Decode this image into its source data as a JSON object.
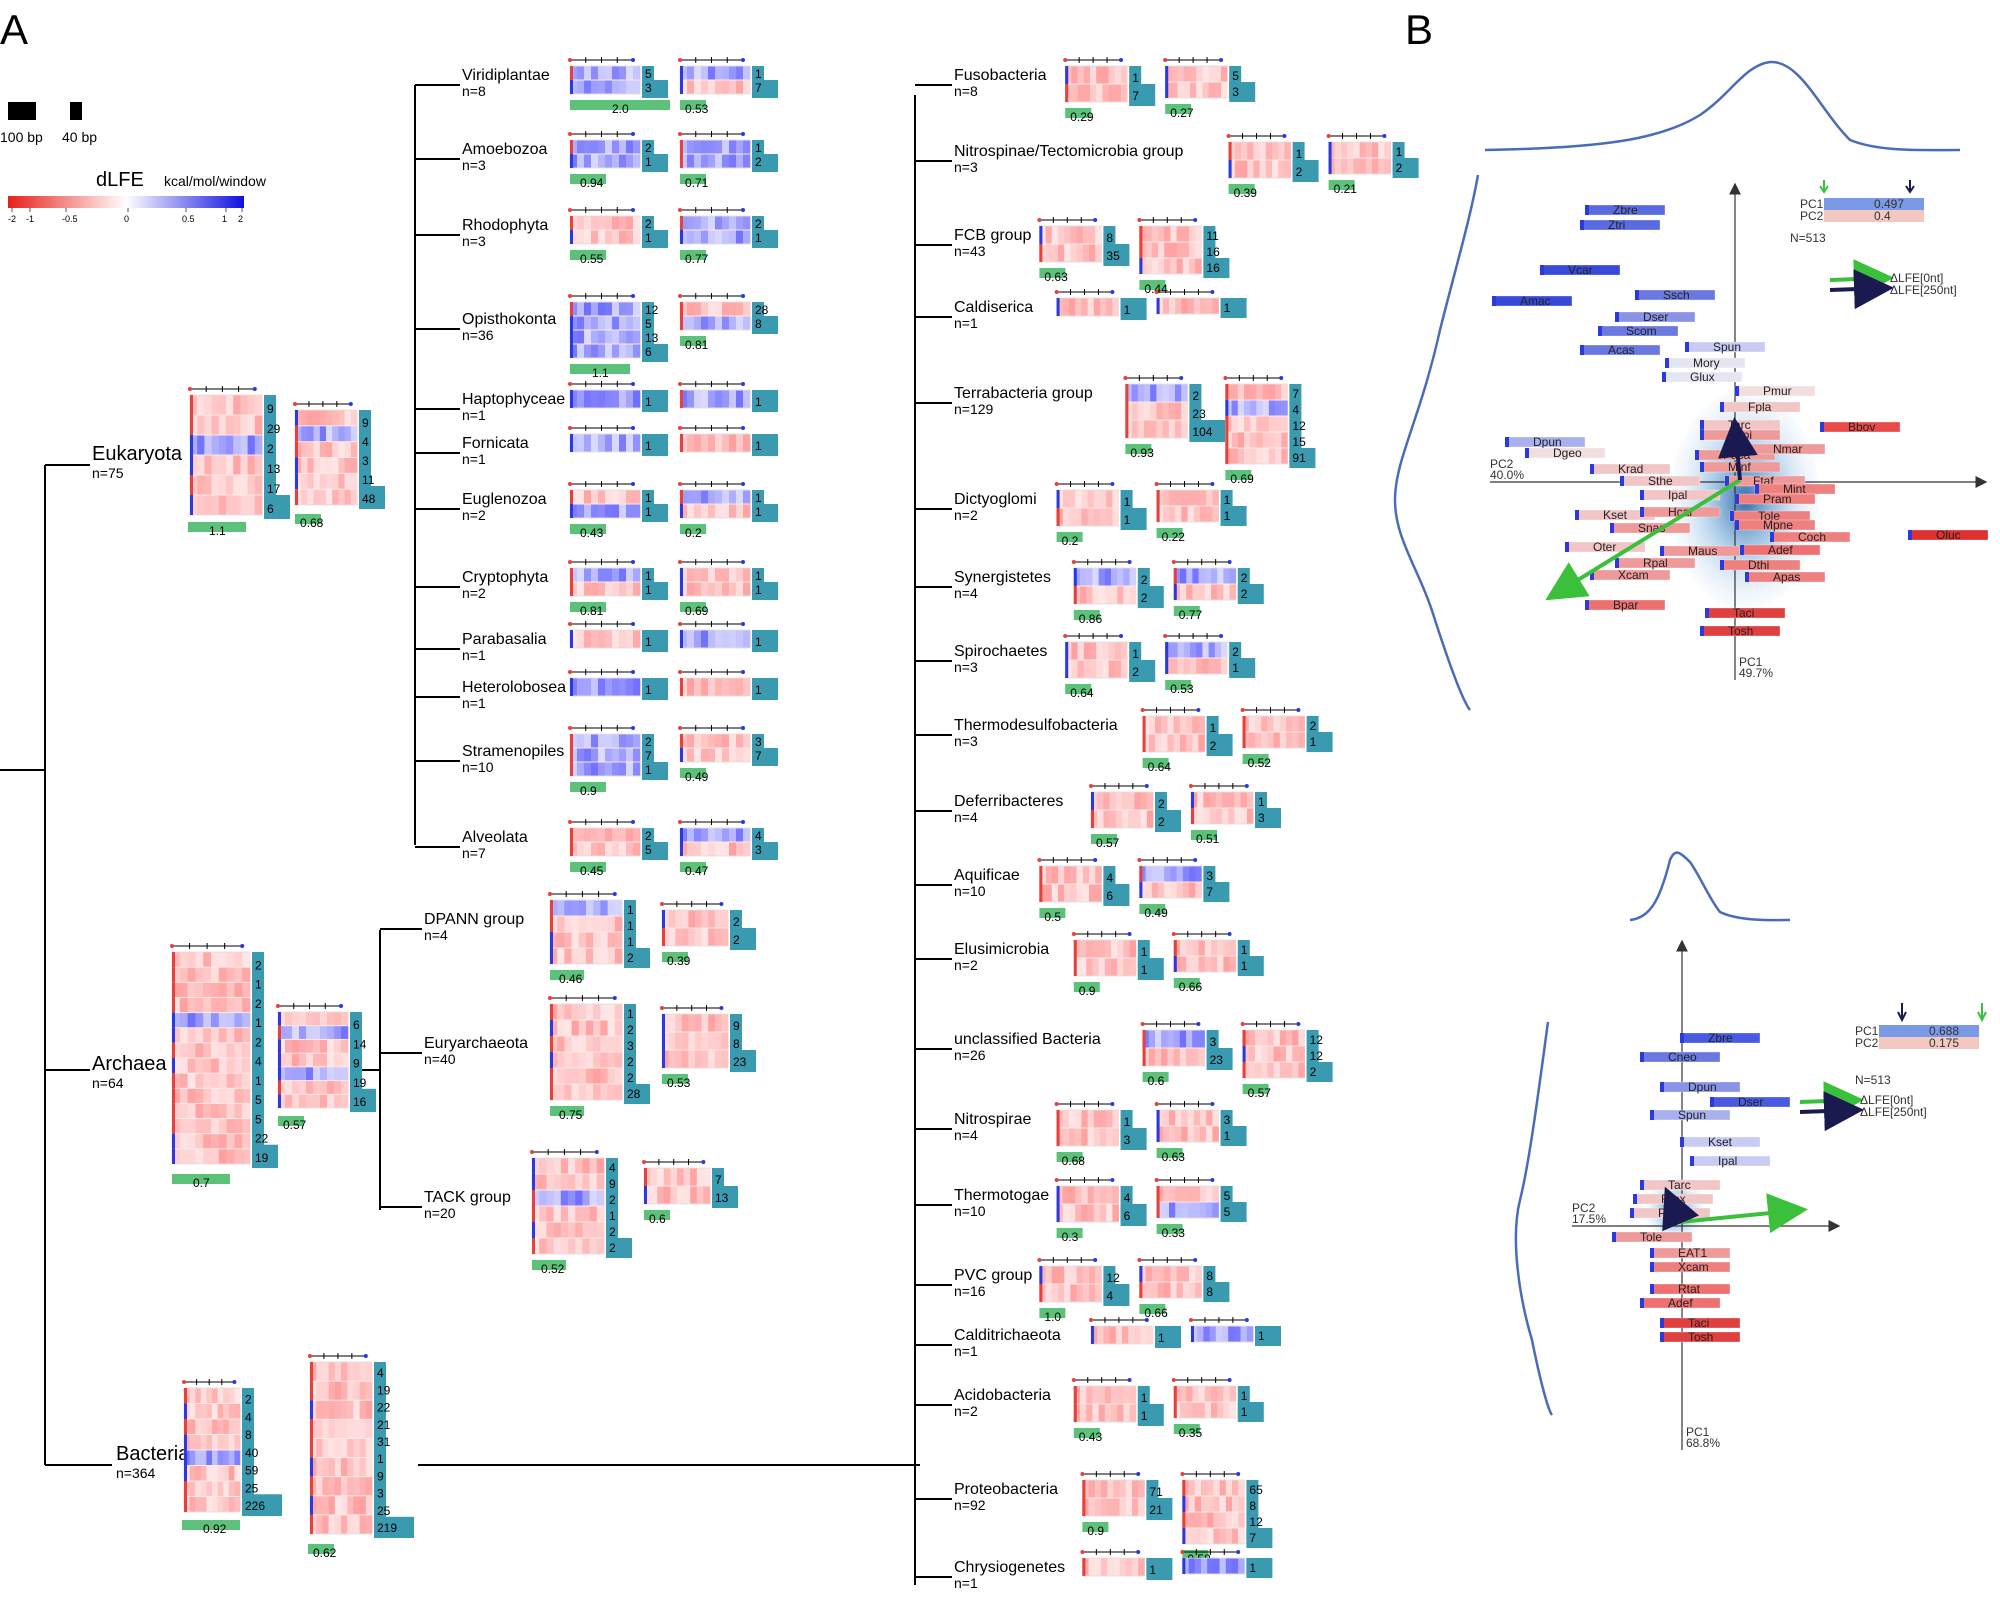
{
  "panels": {
    "a": "A",
    "b": "B"
  },
  "scale": {
    "bar1": "100 bp",
    "bar2": "40 bp"
  },
  "dlfe": {
    "title": "dLFE",
    "unit": "kcal/mol/window",
    "ticks": [
      "-2",
      "-1",
      "-0.5",
      "0",
      "0.5",
      "1",
      "2"
    ]
  },
  "root_groups": [
    {
      "name": "Eukaryota",
      "n": "n=75",
      "hm1": 6,
      "hm2": 6,
      "lc": [
        "9",
        "29",
        "2",
        "13",
        "17",
        "6"
      ],
      "rc": [
        "9",
        "4",
        "3",
        "11",
        "48"
      ],
      "g1": "1.1",
      "g2": "0.68",
      "blue": 0.25
    },
    {
      "name": "Archaea",
      "n": "n=64",
      "hm1": 14,
      "hm2": 7,
      "lc": [
        "2",
        "1",
        "2",
        "1",
        "2",
        "4",
        "1",
        "5",
        "5",
        "22",
        "19"
      ],
      "rc": [
        "6",
        "14",
        "9",
        "19",
        "16"
      ],
      "g1": "0.7",
      "g2": "0.57",
      "blue": 0.1
    },
    {
      "name": "Bacteria",
      "n": "n=364",
      "hm1": 8,
      "hm2": 9,
      "lc": [
        "2",
        "4",
        "8",
        "40",
        "59",
        "25",
        "226"
      ],
      "rc": [
        "4",
        "19",
        "22",
        "21",
        "31",
        "1",
        "9",
        "3",
        "25",
        "219"
      ],
      "g1": "0.92",
      "g2": "0.62",
      "blue": 0.05
    }
  ],
  "eukaryota": [
    {
      "name": "Viridiplantae",
      "n": "n=8",
      "lc": [
        "5",
        "3"
      ],
      "rc": [
        "1",
        "7"
      ],
      "g1": "2.0",
      "g2": "0.53",
      "blue": 0.9
    },
    {
      "name": "Amoebozoa",
      "n": "n=3",
      "lc": [
        "2",
        "1"
      ],
      "rc": [
        "1",
        "2"
      ],
      "g1": "0.94",
      "g2": "0.71",
      "blue": 0.8
    },
    {
      "name": "Rhodophyta",
      "n": "n=3",
      "lc": [
        "2",
        "1"
      ],
      "rc": [
        "2",
        "1"
      ],
      "g1": "0.55",
      "g2": "0.77",
      "blue": 0.5
    },
    {
      "name": "Opisthokonta",
      "n": "n=36",
      "lc": [
        "12",
        "5",
        "13",
        "6"
      ],
      "rc": [
        "28",
        "8"
      ],
      "g1": "1.1",
      "g2": "0.81",
      "blue": 0.8
    },
    {
      "name": "Haptophyceae",
      "n": "n=1",
      "lc": [
        "1"
      ],
      "rc": [
        "1"
      ],
      "g1": "",
      "g2": "",
      "blue": 0.9
    },
    {
      "name": "Fornicata",
      "n": "n=1",
      "lc": [
        "1"
      ],
      "rc": [
        "1"
      ],
      "g1": "",
      "g2": "",
      "blue": 0.1
    },
    {
      "name": "Euglenozoa",
      "n": "n=2",
      "lc": [
        "1",
        "1"
      ],
      "rc": [
        "1",
        "1"
      ],
      "g1": "0.43",
      "g2": "0.2",
      "blue": 0.6
    },
    {
      "name": "Cryptophyta",
      "n": "n=2",
      "lc": [
        "1",
        "1"
      ],
      "rc": [
        "1",
        "1"
      ],
      "g1": "0.81",
      "g2": "0.69",
      "blue": 0.6
    },
    {
      "name": "Parabasalia",
      "n": "n=1",
      "lc": [
        "1"
      ],
      "rc": [
        "1"
      ],
      "g1": "",
      "g2": "",
      "blue": 0.4
    },
    {
      "name": "Heterolobosea",
      "n": "n=1",
      "lc": [
        "1"
      ],
      "rc": [
        "1"
      ],
      "g1": "",
      "g2": "",
      "blue": 0.5
    },
    {
      "name": "Stramenopiles",
      "n": "n=10",
      "lc": [
        "2",
        "7",
        "1"
      ],
      "rc": [
        "3",
        "7"
      ],
      "g1": "0.9",
      "g2": "0.49",
      "blue": 0.6
    },
    {
      "name": "Alveolata",
      "n": "n=7",
      "lc": [
        "2",
        "5"
      ],
      "rc": [
        "4",
        "3"
      ],
      "g1": "0.45",
      "g2": "0.47",
      "blue": 0.1
    }
  ],
  "archaea": [
    {
      "name": "DPANN group",
      "n": "n=4",
      "lc": [
        "1",
        "1",
        "1",
        "2"
      ],
      "rc": [
        "2",
        "2"
      ],
      "g1": "0.46",
      "g2": "0.39",
      "blue": 0.3
    },
    {
      "name": "Euryarchaeota",
      "n": "n=40",
      "lc": [
        "1",
        "2",
        "3",
        "2",
        "2",
        "28"
      ],
      "rc": [
        "9",
        "8",
        "23"
      ],
      "g1": "0.75",
      "g2": "0.53",
      "blue": 0.1
    },
    {
      "name": "TACK group",
      "n": "n=20",
      "lc": [
        "4",
        "9",
        "2",
        "1",
        "2",
        "2"
      ],
      "rc": [
        "7",
        "13"
      ],
      "g1": "0.52",
      "g2": "0.6",
      "blue": 0.3
    }
  ],
  "bacteria": [
    {
      "name": "Fusobacteria",
      "n": "n=8",
      "lc": [
        "1",
        "7"
      ],
      "rc": [
        "5",
        "3"
      ],
      "g1": "0.29",
      "g2": "0.27"
    },
    {
      "name": "Nitrospinae/Tectomicrobia group",
      "n": "n=3",
      "lc": [
        "1",
        "2"
      ],
      "rc": [
        "1",
        "2"
      ],
      "g1": "0.39",
      "g2": "0.21"
    },
    {
      "name": "FCB group",
      "n": "n=43",
      "lc": [
        "8",
        "35"
      ],
      "rc": [
        "11",
        "16",
        "16"
      ],
      "g1": "0.63",
      "g2": "0.44"
    },
    {
      "name": "Caldiserica",
      "n": "n=1",
      "lc": [
        "1"
      ],
      "rc": [
        "1"
      ],
      "g1": "",
      "g2": ""
    },
    {
      "name": "Terrabacteria group",
      "n": "n=129",
      "lc": [
        "2",
        "23",
        "104"
      ],
      "rc": [
        "7",
        "4",
        "12",
        "15",
        "91"
      ],
      "g1": "0.93",
      "g2": "0.69"
    },
    {
      "name": "Dictyoglomi",
      "n": "n=2",
      "lc": [
        "1",
        "1"
      ],
      "rc": [
        "1",
        "1"
      ],
      "g1": "0.2",
      "g2": "0.22"
    },
    {
      "name": "Synergistetes",
      "n": "n=4",
      "lc": [
        "2",
        "2"
      ],
      "rc": [
        "2",
        "2"
      ],
      "g1": "0.86",
      "g2": "0.77"
    },
    {
      "name": "Spirochaetes",
      "n": "n=3",
      "lc": [
        "1",
        "2"
      ],
      "rc": [
        "2",
        "1"
      ],
      "g1": "0.64",
      "g2": "0.53"
    },
    {
      "name": "Thermodesulfobacteria",
      "n": "n=3",
      "lc": [
        "1",
        "2"
      ],
      "rc": [
        "2",
        "1"
      ],
      "g1": "0.64",
      "g2": "0.52"
    },
    {
      "name": "Deferribacteres",
      "n": "n=4",
      "lc": [
        "2",
        "2"
      ],
      "rc": [
        "1",
        "3"
      ],
      "g1": "0.57",
      "g2": "0.51"
    },
    {
      "name": "Aquificae",
      "n": "n=10",
      "lc": [
        "4",
        "6"
      ],
      "rc": [
        "3",
        "7"
      ],
      "g1": "0.5",
      "g2": "0.49"
    },
    {
      "name": "Elusimicrobia",
      "n": "n=2",
      "lc": [
        "1",
        "1"
      ],
      "rc": [
        "1",
        "1"
      ],
      "g1": "0.9",
      "g2": "0.66"
    },
    {
      "name": "unclassified Bacteria",
      "n": "n=26",
      "lc": [
        "3",
        "23"
      ],
      "rc": [
        "12",
        "12",
        "2"
      ],
      "g1": "0.6",
      "g2": "0.57"
    },
    {
      "name": "Nitrospirae",
      "n": "n=4",
      "lc": [
        "1",
        "3"
      ],
      "rc": [
        "3",
        "1"
      ],
      "g1": "0.68",
      "g2": "0.63"
    },
    {
      "name": "Thermotogae",
      "n": "n=10",
      "lc": [
        "4",
        "6"
      ],
      "rc": [
        "5",
        "5"
      ],
      "g1": "0.3",
      "g2": "0.33"
    },
    {
      "name": "PVC group",
      "n": "n=16",
      "lc": [
        "12",
        "4"
      ],
      "rc": [
        "8",
        "8"
      ],
      "g1": "1.0",
      "g2": "0.66"
    },
    {
      "name": "Calditrichaeota",
      "n": "n=1",
      "lc": [
        "1"
      ],
      "rc": [
        "1"
      ],
      "g1": "",
      "g2": ""
    },
    {
      "name": "Acidobacteria",
      "n": "n=2",
      "lc": [
        "1",
        "1"
      ],
      "rc": [
        "1",
        "1"
      ],
      "g1": "0.43",
      "g2": "0.35"
    },
    {
      "name": "Proteobacteria",
      "n": "n=92",
      "lc": [
        "71",
        "21"
      ],
      "rc": [
        "65",
        "8",
        "12",
        "7"
      ],
      "g1": "0.9",
      "g2": "0.58"
    },
    {
      "name": "Chrysiogenetes",
      "n": "n=1",
      "lc": [
        "1"
      ],
      "rc": [
        "1"
      ],
      "g1": "",
      "g2": ""
    }
  ],
  "pca_top": {
    "pc1_label": "PC1",
    "pc2_label": "PC2",
    "pc1_axis": "PC1",
    "pc1_pct": "49.7%",
    "pc2_axis": "PC2",
    "pc2_pct": "40.0%",
    "pc1_val": "0.497",
    "pc2_val": "0.4",
    "n": "N=513",
    "arrow1": "ΔLFE[0nt]",
    "arrow2": "ΔLFE[250nt]",
    "species": [
      {
        "name": "Zbre",
        "c": "#5a6be0"
      },
      {
        "name": "Ztri",
        "c": "#5a6be0"
      },
      {
        "name": "Vcar",
        "c": "#3a4ad8"
      },
      {
        "name": "Amac",
        "c": "#3a4ad8"
      },
      {
        "name": "Ssch",
        "c": "#6a78e0"
      },
      {
        "name": "Dser",
        "c": "#8a94e6"
      },
      {
        "name": "Scom",
        "c": "#6a78e0"
      },
      {
        "name": "Acas",
        "c": "#6a78e0"
      },
      {
        "name": "Spun",
        "c": "#c9ccf2"
      },
      {
        "name": "Mory",
        "c": "#e6e6f2"
      },
      {
        "name": "Glux",
        "c": "#e6e6f2"
      },
      {
        "name": "Pmur",
        "c": "#f2dede"
      },
      {
        "name": "Fpla",
        "c": "#f0c6c6"
      },
      {
        "name": "Tarc",
        "c": "#f0c6c6"
      },
      {
        "name": "Bbov",
        "c": "#e84a4a"
      },
      {
        "name": "Sepi",
        "c": "#ee9a9a"
      },
      {
        "name": "Dpun",
        "c": "#aab0ee"
      },
      {
        "name": "Paca",
        "c": "#ee9a9a"
      },
      {
        "name": "Nmar",
        "c": "#ee9a9a"
      },
      {
        "name": "Dgeo",
        "c": "#f2dede"
      },
      {
        "name": "Minf",
        "c": "#ee9a9a"
      },
      {
        "name": "Krad",
        "c": "#f0c6c6"
      },
      {
        "name": "Sthe",
        "c": "#f0c6c6"
      },
      {
        "name": "Ftaf",
        "c": "#ee9a9a"
      },
      {
        "name": "Mint",
        "c": "#ee8080"
      },
      {
        "name": "Ipal",
        "c": "#f0c6c6"
      },
      {
        "name": "Pram",
        "c": "#ee8080"
      },
      {
        "name": "Kset",
        "c": "#f0c6c6"
      },
      {
        "name": "Hcar",
        "c": "#ee9a9a"
      },
      {
        "name": "Tole",
        "c": "#ee8080"
      },
      {
        "name": "Snas",
        "c": "#ee9a9a"
      },
      {
        "name": "Mpne",
        "c": "#ee8080"
      },
      {
        "name": "Oluc",
        "c": "#e03030"
      },
      {
        "name": "Coch",
        "c": "#ee8080"
      },
      {
        "name": "Oter",
        "c": "#f0c6c6"
      },
      {
        "name": "Maus",
        "c": "#ee9a9a"
      },
      {
        "name": "Adef",
        "c": "#ee7070"
      },
      {
        "name": "Rpal",
        "c": "#ee9a9a"
      },
      {
        "name": "Xcam",
        "c": "#ee9a9a"
      },
      {
        "name": "Dthi",
        "c": "#ee8080"
      },
      {
        "name": "Apas",
        "c": "#ee8080"
      },
      {
        "name": "Bpar",
        "c": "#ee7070"
      },
      {
        "name": "Taci",
        "c": "#e04040"
      },
      {
        "name": "Tosh",
        "c": "#e04040"
      }
    ]
  },
  "pca_bottom": {
    "pc1_label": "PC1",
    "pc2_label": "PC2",
    "pc1_axis": "PC1",
    "pc1_pct": "68.8%",
    "pc2_axis": "PC2",
    "pc2_pct": "17.5%",
    "pc1_val": "0.688",
    "pc2_val": "0.175",
    "n": "N=513",
    "arrow1": "ΔLFE[0nt]",
    "arrow2": "ΔLFE[250nt]",
    "species": [
      {
        "name": "Zbre",
        "c": "#4a5ae0"
      },
      {
        "name": "Cneo",
        "c": "#6a78e0"
      },
      {
        "name": "Dpun",
        "c": "#8a94e6"
      },
      {
        "name": "Dser",
        "c": "#4a5ae0"
      },
      {
        "name": "Spun",
        "c": "#aab0ee"
      },
      {
        "name": "Kset",
        "c": "#c9ccf2"
      },
      {
        "name": "Ipal",
        "c": "#c9ccf2"
      },
      {
        "name": "Tarc",
        "c": "#f0c6c6"
      },
      {
        "name": "Rtox",
        "c": "#f0c6c6"
      },
      {
        "name": "Paca",
        "c": "#f0c6c6"
      },
      {
        "name": "Tole",
        "c": "#ee9a9a"
      },
      {
        "name": "EAT1",
        "c": "#ee9a9a"
      },
      {
        "name": "Xcam",
        "c": "#ee8080"
      },
      {
        "name": "Rtat",
        "c": "#ee7070"
      },
      {
        "name": "Adef",
        "c": "#ee7070"
      },
      {
        "name": "Taci",
        "c": "#e04040"
      },
      {
        "name": "Tosh",
        "c": "#e04040"
      }
    ]
  },
  "colors": {
    "teal": "#3a9ab0",
    "green": "#5cc27a",
    "red": "#e8403a",
    "blue": "#2a3ae0",
    "curve": "#4a6cb8",
    "darkarrow": "#1a1a50",
    "greenarrow": "#3ac03a"
  }
}
